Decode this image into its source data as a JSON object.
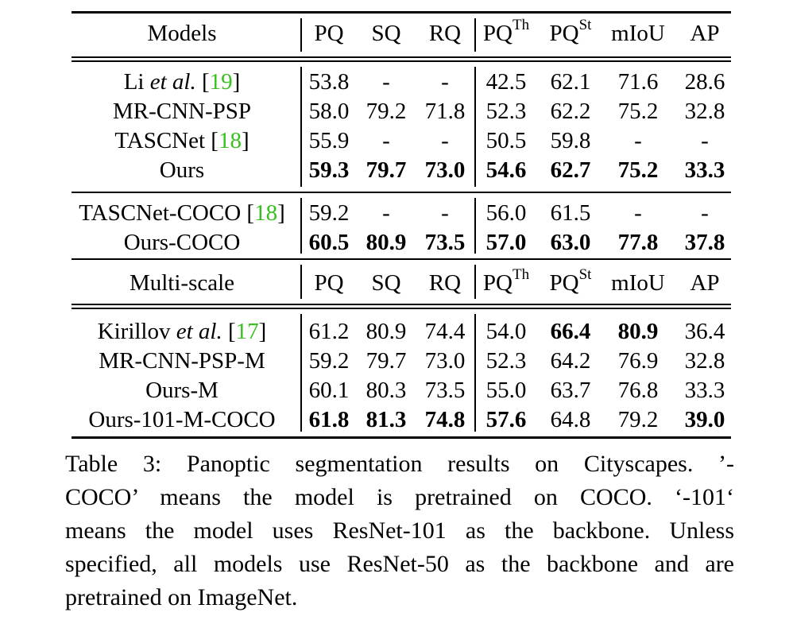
{
  "table": {
    "header": [
      "Models",
      "PQ",
      "SQ",
      "RQ",
      "PQ",
      "PQ",
      "mIoU",
      "AP"
    ],
    "header_sup": {
      "4": "Th",
      "5": "St"
    },
    "header2": [
      "Multi-scale",
      "PQ",
      "SQ",
      "RQ",
      "PQ",
      "PQ",
      "mIoU",
      "AP"
    ],
    "header2_sup": {
      "4": "Th",
      "5": "St"
    },
    "sections": [
      {
        "rows": [
          {
            "model_pre": "Li ",
            "model_it": "et al.",
            "model_post": " [",
            "ref": "19",
            "model_end": "]",
            "values": [
              "53.8",
              "-",
              "-",
              "42.5",
              "62.1",
              "71.6",
              "28.6"
            ],
            "bold": []
          },
          {
            "model_pre": "MR-CNN-PSP",
            "values": [
              "58.0",
              "79.2",
              "71.8",
              "52.3",
              "62.2",
              "75.2",
              "32.8"
            ],
            "bold": []
          },
          {
            "model_pre": "TASCNet [",
            "ref": "18",
            "model_end": "]",
            "values": [
              "55.9",
              "-",
              "-",
              "50.5",
              "59.8",
              "-",
              "-"
            ],
            "bold": []
          },
          {
            "model_pre": "Ours",
            "values": [
              "59.3",
              "79.7",
              "73.0",
              "54.6",
              "62.7",
              "75.2",
              "33.3"
            ],
            "bold": [
              0,
              1,
              2,
              3,
              4,
              5,
              6
            ]
          }
        ]
      },
      {
        "rows": [
          {
            "model_pre": "TASCNet-COCO [",
            "ref": "18",
            "model_end": "]",
            "values": [
              "59.2",
              "-",
              "-",
              "56.0",
              "61.5",
              "-",
              "-"
            ],
            "bold": []
          },
          {
            "model_pre": "Ours-COCO",
            "values": [
              "60.5",
              "80.9",
              "73.5",
              "57.0",
              "63.0",
              "77.8",
              "37.8"
            ],
            "bold": [
              0,
              1,
              2,
              3,
              4,
              5,
              6
            ]
          }
        ]
      },
      {
        "rows": [
          {
            "model_pre": "Kirillov ",
            "model_it": "et al.",
            "model_post": " [",
            "ref": "17",
            "model_end": "]",
            "values": [
              "61.2",
              "80.9",
              "74.4",
              "54.0",
              "66.4",
              "80.9",
              "36.4"
            ],
            "bold": [
              4,
              5
            ]
          },
          {
            "model_pre": "MR-CNN-PSP-M",
            "values": [
              "59.2",
              "79.7",
              "73.0",
              "52.3",
              "64.2",
              "76.9",
              "32.8"
            ],
            "bold": []
          },
          {
            "model_pre": "Ours-M",
            "values": [
              "60.1",
              "80.3",
              "73.5",
              "55.0",
              "63.7",
              "76.8",
              "33.3"
            ],
            "bold": []
          },
          {
            "model_pre": "Ours-101-M-COCO",
            "values": [
              "61.8",
              "81.3",
              "74.8",
              "57.6",
              "64.8",
              "79.2",
              "39.0"
            ],
            "bold": [
              0,
              1,
              2,
              3,
              6
            ]
          }
        ]
      }
    ]
  },
  "caption": {
    "lines": [
      "Table 3: Panoptic segmentation results on Cityscapes. ’-",
      "COCO’ means the model is pretrained on COCO. ‘-101‘",
      "means the model uses ResNet-101 as the backbone. Unless",
      "specified, all models use ResNet-50 as the backbone and are",
      "pretrained on ImageNet."
    ]
  },
  "colors": {
    "reference": "#38c020",
    "text": "#000000"
  }
}
